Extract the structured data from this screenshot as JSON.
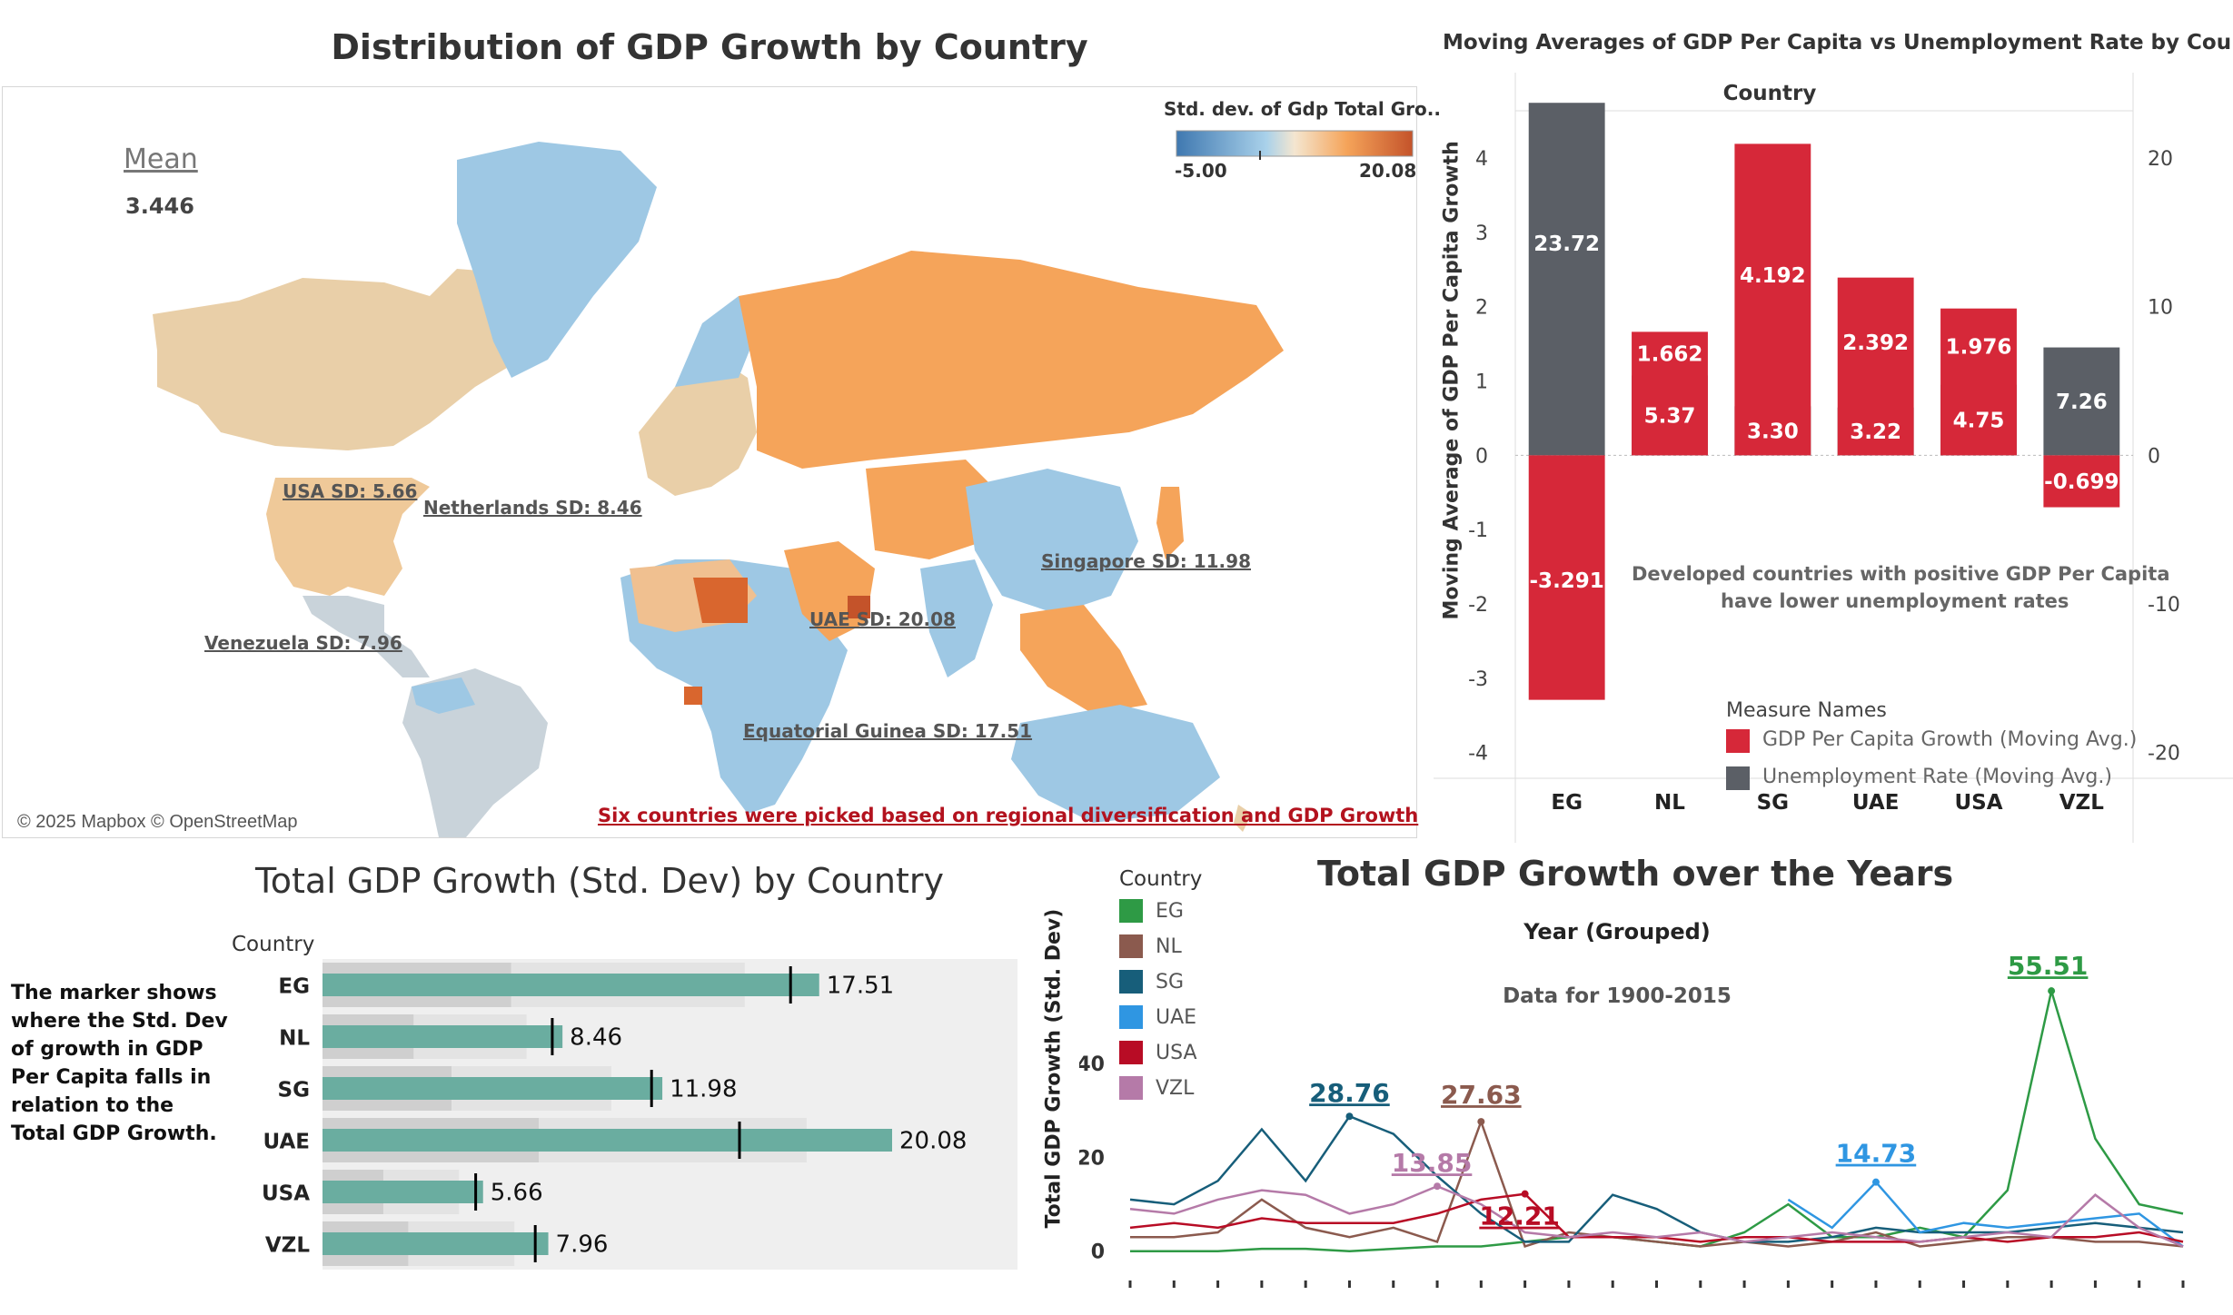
{
  "map_panel": {
    "title": "Distribution of GDP Growth by Country",
    "mean_label": "Mean",
    "mean_value": "3.446",
    "legend_title": "Std. dev. of Gdp Total Gro..",
    "legend_min": "-5.00",
    "legend_max": "20.08",
    "attribution": "© 2025 Mapbox © OpenStreetMap",
    "footnote": "Six countries were picked based on regional diversification and GDP Growth",
    "labels": {
      "usa": "USA SD: 5.66",
      "netherlands": "Netherlands SD: 8.46",
      "singapore": "Singapore SD: 11.98",
      "uae": "UAE SD: 20.08",
      "venezuela": "Venezuela SD: 7.96",
      "eq_guinea": "Equatorial Guinea SD: 17.51"
    },
    "colors": {
      "low": "#3f78b0",
      "mid": "#f4e6d0",
      "high": "#c4532a",
      "orange": "#f5a45a",
      "lightblue": "#9ec8e4",
      "tan": "#e9cfa8",
      "grey": "#c9d3da"
    }
  },
  "bar_panel": {
    "title": "Moving Averages of GDP Per Capita vs Unemployment Rate by Country",
    "header": "Country",
    "annotation_line1": "Developed countries with positive GDP Per Capita",
    "annotation_line2": "have lower unemployment rates",
    "legend_title": "Measure Names",
    "colors": {
      "gdp": "#d62839",
      "unemp": "#5b5f66"
    }
  },
  "bullet_panel": {
    "title": "Total GDP Growth (Std. Dev) by Country",
    "header": "Country",
    "note": "The marker shows where the Std. Dev of growth in GDP Per Capita falls in relation to the Total GDP Growth.",
    "colors": {
      "bar": "#6aada0",
      "band_dark": "#cfcfcf",
      "band_light": "#e3e3e3",
      "bg": "#efefef"
    }
  },
  "line_panel": {
    "title": "Total GDP Growth over the Years",
    "header": "Year (Grouped)",
    "note": "Data for 1900-2015",
    "legend_title": "Country"
  },
  "chart_data": [
    {
      "type": "bar",
      "title": "Moving Averages of GDP Per Capita vs Unemployment Rate by Country",
      "xlabel": "Country",
      "ylabel": "Moving Average of GDP Per Capita Growth",
      "categories": [
        "EG",
        "NL",
        "SG",
        "UAE",
        "USA",
        "VZL"
      ],
      "ylim": [
        -4.2,
        4.6
      ],
      "y2lim": [
        -21,
        23
      ],
      "yticks": [
        4,
        3,
        2,
        1,
        0,
        -1,
        -2,
        -3,
        -4
      ],
      "y2ticks": [
        20,
        10,
        0,
        -10,
        -20
      ],
      "series": [
        {
          "name": "GDP Per Capita Growth (Moving Avg.)",
          "axis": "left",
          "values": [
            -3.291,
            1.662,
            4.192,
            2.392,
            1.976,
            -0.699
          ],
          "labels": [
            "-3.291",
            "1.662",
            "4.192",
            "2.392",
            "1.976",
            "-0.699"
          ]
        },
        {
          "name": "Unemployment Rate (Moving Avg.)",
          "axis": "right",
          "values": [
            23.72,
            5.37,
            3.3,
            3.22,
            4.75,
            7.26
          ],
          "labels": [
            "23.72",
            "5.37",
            "3.30",
            "3.22",
            "4.75",
            "7.26"
          ]
        }
      ]
    },
    {
      "type": "bar",
      "title": "Total GDP Growth (Std. Dev) by Country",
      "ylabel": "Country",
      "categories": [
        "EG",
        "NL",
        "SG",
        "UAE",
        "USA",
        "VZL"
      ],
      "values": [
        17.51,
        8.46,
        11.98,
        20.08,
        5.66,
        7.96
      ],
      "labels": [
        "17.51",
        "8.46",
        "11.98",
        "20.08",
        "5.66",
        "7.96"
      ],
      "markers": [
        16.5,
        8.1,
        11.6,
        14.7,
        5.4,
        7.5
      ],
      "xlim": [
        0,
        24.5
      ]
    },
    {
      "type": "line",
      "title": "Total GDP Growth over the Years",
      "xlabel": "Year (Grouped)",
      "ylabel": "Total GDP Growth (Std. Dev)",
      "ylim": [
        -2,
        60
      ],
      "yticks": [
        40,
        20,
        0
      ],
      "series": [
        {
          "name": "EG",
          "color": "#2e9a45",
          "values": [
            0,
            0,
            0,
            0.5,
            0.5,
            0,
            0.5,
            1,
            1,
            2,
            3,
            3,
            2,
            1,
            4,
            10,
            3,
            3,
            5,
            3,
            13,
            55.51,
            24,
            10,
            8
          ]
        },
        {
          "name": "NL",
          "color": "#8b5a4e",
          "values": [
            3,
            3,
            4,
            11,
            5,
            3,
            5,
            2,
            27.63,
            1,
            4,
            3,
            2,
            1,
            2,
            1,
            2,
            4,
            1,
            2,
            3,
            3,
            2,
            2,
            1
          ]
        },
        {
          "name": "SG",
          "color": "#175e7a",
          "values": [
            11,
            10,
            15,
            26,
            15,
            28.76,
            25,
            16,
            8,
            2,
            2,
            12,
            9,
            4,
            2,
            2,
            3,
            5,
            4,
            4,
            4,
            5,
            6,
            5,
            4
          ]
        },
        {
          "name": "UAE",
          "color": "#2f96e2",
          "values": [
            null,
            null,
            null,
            null,
            null,
            null,
            null,
            null,
            null,
            null,
            null,
            null,
            null,
            null,
            null,
            11,
            5,
            14.73,
            4,
            6,
            5,
            6,
            7,
            8,
            1
          ]
        },
        {
          "name": "USA",
          "color": "#b80c25",
          "values": [
            5,
            6,
            5,
            7,
            6,
            6,
            6,
            8,
            11,
            12.21,
            3,
            3,
            3,
            2,
            3,
            3,
            2,
            2,
            2,
            3,
            2,
            3,
            3,
            4,
            2
          ]
        },
        {
          "name": "VZL",
          "color": "#b57aa8",
          "values": [
            9,
            8,
            11,
            13,
            12,
            8,
            10,
            13.85,
            10,
            4,
            3,
            4,
            3,
            4,
            2,
            3,
            4,
            3,
            2,
            3,
            4,
            3,
            12,
            5,
            1
          ]
        }
      ],
      "annotations": [
        {
          "series": "EG",
          "label": "55.51"
        },
        {
          "series": "SG",
          "label": "28.76"
        },
        {
          "series": "NL",
          "label": "27.63"
        },
        {
          "series": "VZL",
          "label": "13.85"
        },
        {
          "series": "USA",
          "label": "12.21"
        },
        {
          "series": "UAE",
          "label": "14.73"
        }
      ]
    }
  ]
}
